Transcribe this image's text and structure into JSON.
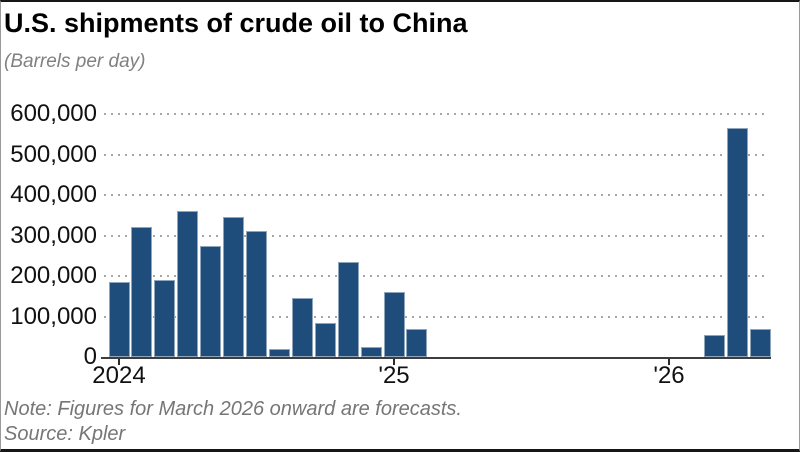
{
  "header": {
    "title": "U.S. shipments of crude oil to China",
    "subtitle": "(Barrels per day)"
  },
  "footer": {
    "note": "Note: Figures for March 2026 onward are forecasts.",
    "source": "Source: Kpler"
  },
  "chart_data": {
    "type": "bar",
    "title": "U.S. shipments of crude oil to China",
    "subtitle": "(Barrels per day)",
    "unit": "barrels per day",
    "categories": [
      "Jan 2024",
      "Feb 2024",
      "Mar 2024",
      "Apr 2024",
      "May 2024",
      "Jun 2024",
      "Jul 2024",
      "Aug 2024",
      "Sep 2024",
      "Oct 2024",
      "Nov 2024",
      "Dec 2024",
      "Jan 2025",
      "Feb 2025",
      "Mar 2025",
      "Apr 2025",
      "May 2025",
      "Jun 2025",
      "Jul 2025",
      "Aug 2025",
      "Sep 2025",
      "Oct 2025",
      "Nov 2025",
      "Dec 2025",
      "Jan 2026",
      "Feb 2026",
      "Mar 2026",
      "Apr 2026",
      "May 2026"
    ],
    "values": [
      185000,
      320000,
      190000,
      360000,
      275000,
      345000,
      310000,
      20000,
      145000,
      85000,
      235000,
      25000,
      160000,
      70000,
      0,
      0,
      0,
      0,
      0,
      0,
      0,
      0,
      0,
      0,
      0,
      0,
      55000,
      565000,
      70000
    ],
    "y_ticks": [
      {
        "value": 0,
        "label": "0"
      },
      {
        "value": 100000,
        "label": "100,000"
      },
      {
        "value": 200000,
        "label": "200,000"
      },
      {
        "value": 300000,
        "label": "300,000"
      },
      {
        "value": 400000,
        "label": "400,000"
      },
      {
        "value": 500000,
        "label": "500,000"
      },
      {
        "value": 600000,
        "label": "600,000"
      }
    ],
    "x_ticks": [
      {
        "label": "2024",
        "month_index": 0
      },
      {
        "label": "'25",
        "month_index": 12
      },
      {
        "label": "'26",
        "month_index": 24
      }
    ],
    "ylim": [
      0,
      600000
    ],
    "grid": "horizontal dotted",
    "legend": "none",
    "bar_color": "#1e4d7b",
    "note": "Figures for March 2026 onward are forecasts.",
    "source": "Kpler"
  }
}
